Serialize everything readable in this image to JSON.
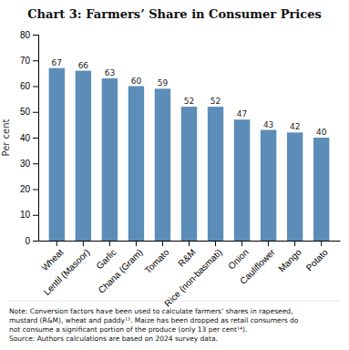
{
  "chart_data": {
    "type": "bar",
    "title": "Chart 3: Farmers’ Share in Consumer Prices",
    "categories": [
      "Wheat",
      "Lentil (Masoor)",
      "Garlic",
      "Chana (Gram)",
      "Tomato",
      "R&M",
      "Rice (non-basmati)",
      "Onion",
      "Cauliflower",
      "Mango",
      "Potato"
    ],
    "values": [
      67,
      66,
      63,
      60,
      59,
      52,
      52,
      47,
      43,
      42,
      40
    ],
    "color": "#5b8db8",
    "y_label": "Per cent",
    "ylim": [
      0,
      80
    ],
    "yticks": [
      0,
      10,
      20,
      30,
      40,
      50,
      60,
      70,
      80
    ],
    "data_labels": true,
    "grid": false,
    "annotations": [
      "Note: Conversion factors have been used to calculate farmers’ shares in rapeseed,",
      "mustard (R&M), wheat and paddy¹³. Maize has been dropped as retail consumers do",
      "not consume a significant portion of the produce (only 13 per cent¹⁴).",
      "Source: Authors calculations are based on 2024 survey data."
    ]
  }
}
